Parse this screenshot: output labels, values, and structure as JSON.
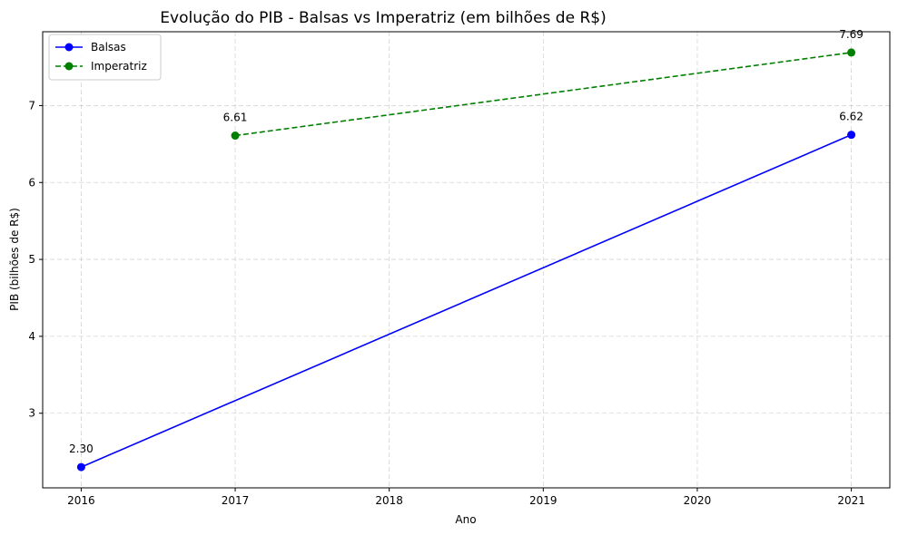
{
  "chart_data": {
    "type": "line",
    "title": "Evolução do PIB - Balsas vs Imperatriz (em bilhões de R$)",
    "xlabel": "Ano",
    "ylabel": "PIB (bilhões de R$)",
    "x_ticks": [
      "2016",
      "2017",
      "2018",
      "2019",
      "2020",
      "2021"
    ],
    "y_ticks": [
      "3",
      "4",
      "5",
      "6",
      "7"
    ],
    "xlim": [
      2015.75,
      2021.25
    ],
    "ylim": [
      2.03,
      7.96
    ],
    "grid": true,
    "legend_position": "top-left",
    "series": [
      {
        "name": "Balsas",
        "color": "#0000ff",
        "line_style": "solid",
        "marker": "circle",
        "points": [
          {
            "x": 2016,
            "y": 2.3,
            "label": "2.30"
          },
          {
            "x": 2021,
            "y": 6.62,
            "label": "6.62"
          }
        ]
      },
      {
        "name": "Imperatriz",
        "color": "#008000",
        "line_style": "dashed",
        "marker": "circle",
        "points": [
          {
            "x": 2017,
            "y": 6.61,
            "label": "6.61"
          },
          {
            "x": 2021,
            "y": 7.69,
            "label": "7.69"
          }
        ]
      }
    ]
  }
}
